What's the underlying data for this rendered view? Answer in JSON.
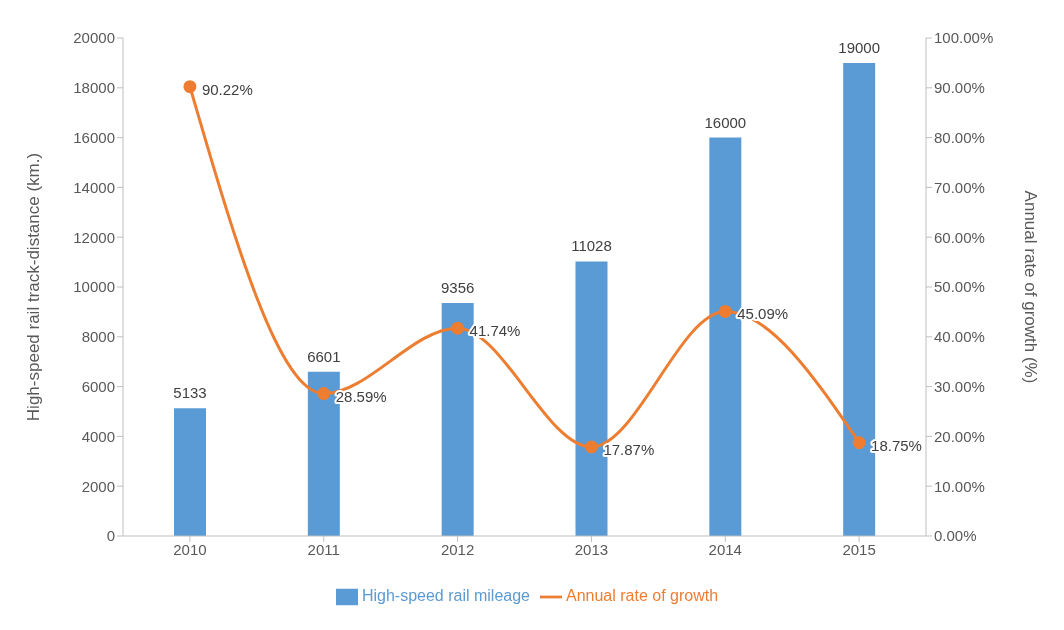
{
  "chart_data": {
    "type": "bar",
    "categories": [
      "2010",
      "2011",
      "2012",
      "2013",
      "2014",
      "2015"
    ],
    "series": [
      {
        "name": "High-speed rail mileage",
        "color": "#5b9bd5",
        "values": [
          5133,
          6601,
          9356,
          11028,
          16000,
          19000
        ],
        "value_labels": [
          "5133",
          "6601",
          "9356",
          "11028",
          "16000",
          "19000"
        ]
      },
      {
        "name": "Annual rate of growth",
        "type": "line",
        "axis": "y2",
        "color": "#ed7d31",
        "values": [
          90.22,
          28.59,
          41.74,
          17.87,
          45.09,
          18.75
        ],
        "value_labels": [
          "90.22%",
          "28.59%",
          "41.74%",
          "17.87%",
          "45.09%",
          "18.75%"
        ],
        "marker": "circle"
      }
    ],
    "ylabel": "High-speed rail track-distance (km.)",
    "y2label": "Annual rate of growth (%)",
    "ylim": [
      0,
      20000
    ],
    "yticks": [
      0,
      2000,
      4000,
      6000,
      8000,
      10000,
      12000,
      14000,
      16000,
      18000,
      20000
    ],
    "y2lim": [
      0,
      100
    ],
    "y2ticks": [
      {
        "value": 0,
        "label": "0.00%"
      },
      {
        "value": 10,
        "label": "10.00%"
      },
      {
        "value": 20,
        "label": "20.00%"
      },
      {
        "value": 30,
        "label": "30.00%"
      },
      {
        "value": 40,
        "label": "40.00%"
      },
      {
        "value": 50,
        "label": "50.00%"
      },
      {
        "value": 60,
        "label": "60.00%"
      },
      {
        "value": 70,
        "label": "70.00%"
      },
      {
        "value": 80,
        "label": "80.00%"
      },
      {
        "value": 90,
        "label": "90.00%"
      },
      {
        "value": 100,
        "label": "100.00%"
      }
    ],
    "legend": "bottom",
    "grid": false
  }
}
